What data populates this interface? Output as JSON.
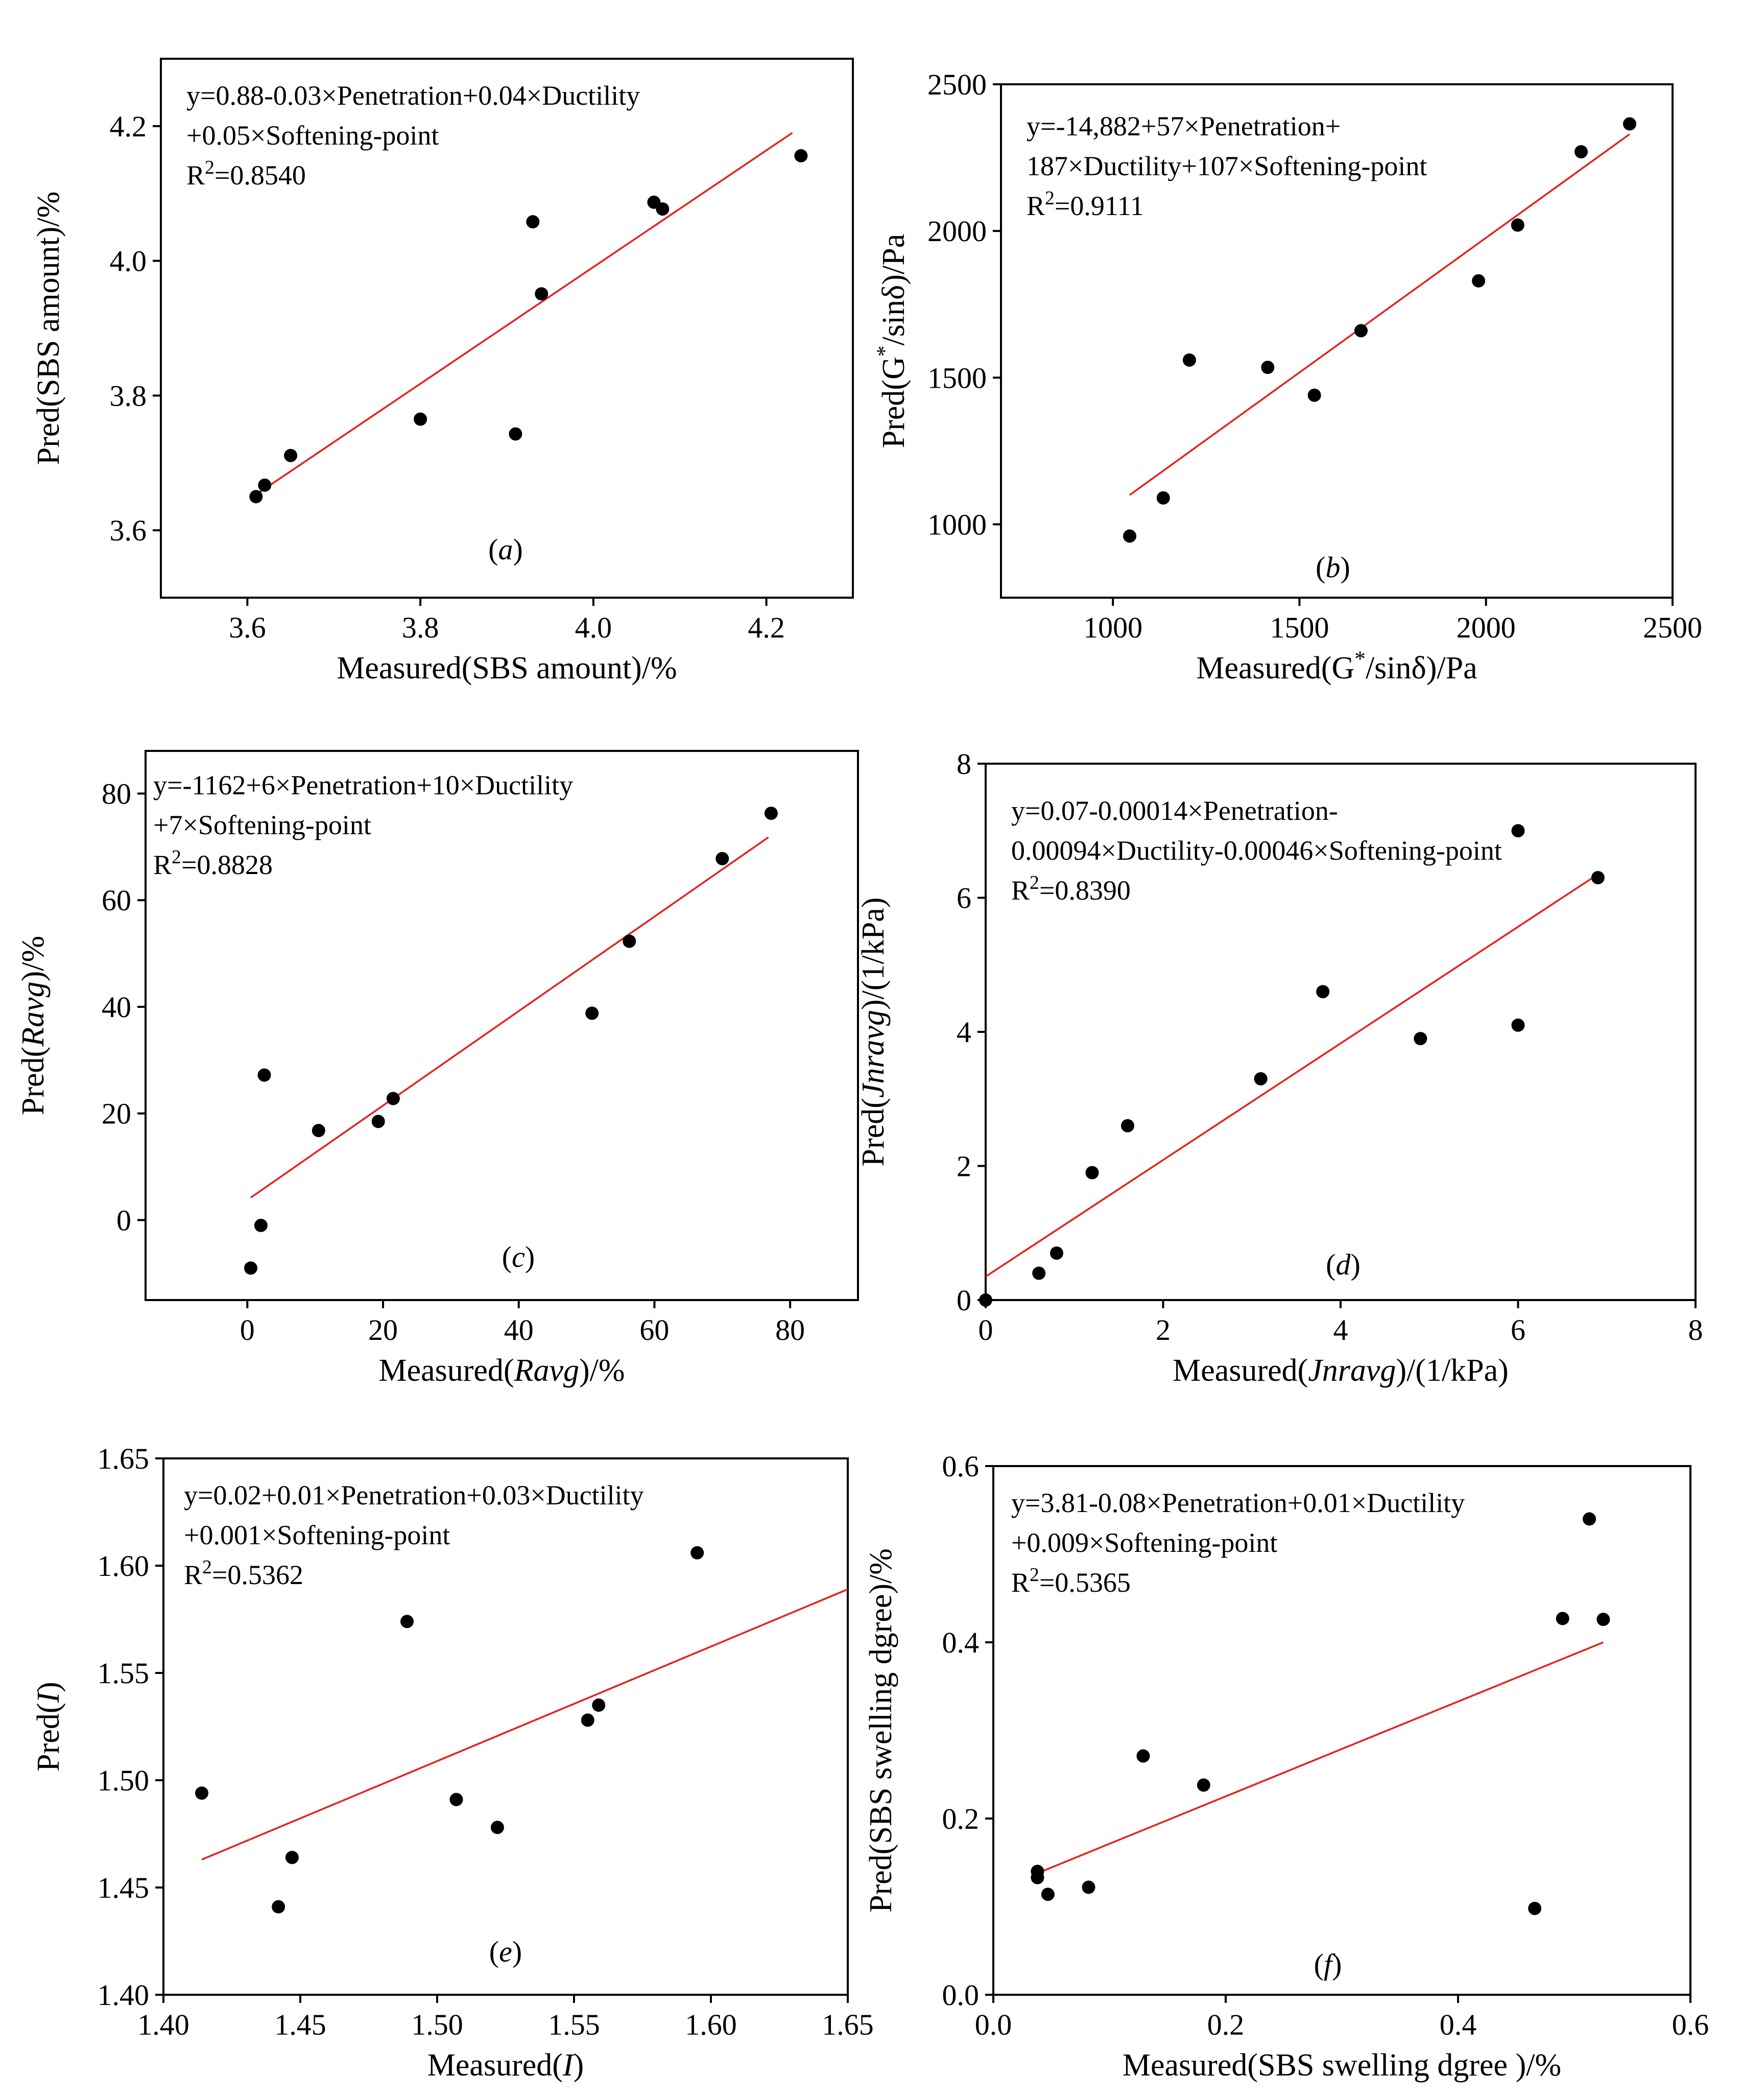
{
  "chart_data": [
    {
      "type": "scatter",
      "panel": "(a)",
      "xlabel": "Measured(SBS amount)/%",
      "ylabel": "Pred(SBS amount)/%",
      "xlim": [
        3.5,
        4.3
      ],
      "ylim": [
        3.5,
        4.3
      ],
      "xticks": [
        3.6,
        3.8,
        4.0,
        4.2
      ],
      "yticks": [
        3.6,
        3.8,
        4.0,
        4.2
      ],
      "tick_decimals": 1,
      "equation_lines": [
        "y=0.88-0.03×Penetration+0.04×Ductility",
        "+0.05×Softening-point"
      ],
      "r2_label": "R²=0.8540",
      "points": [
        [
          3.61,
          3.65
        ],
        [
          3.62,
          3.667
        ],
        [
          3.65,
          3.711
        ],
        [
          3.8,
          3.765
        ],
        [
          3.91,
          3.743
        ],
        [
          3.93,
          4.058
        ],
        [
          3.94,
          3.951
        ],
        [
          4.07,
          4.087
        ],
        [
          4.08,
          4.077
        ],
        [
          4.24,
          4.156
        ]
      ],
      "fit_line": [
        [
          3.61,
          3.653
        ],
        [
          4.23,
          4.19
        ]
      ]
    },
    {
      "type": "scatter",
      "panel": "(b)",
      "xlabel": "Measured(G*/sinδ)/Pa",
      "ylabel": "Pred(G*/sinδ)/Pa",
      "xlim": [
        700,
        2500
      ],
      "ylim": [
        750,
        2500
      ],
      "xticks": [
        1000,
        1500,
        2000,
        2500
      ],
      "yticks": [
        1000,
        1500,
        2000,
        2500
      ],
      "tick_decimals": 0,
      "equation_lines": [
        "y=-14,882+57×Penetration+",
        "187×Ductility+107×Softening-point"
      ],
      "r2_label": "R²=0.9111",
      "points": [
        [
          1045,
          960
        ],
        [
          1135,
          1090
        ],
        [
          1205,
          1560
        ],
        [
          1415,
          1535
        ],
        [
          1540,
          1440
        ],
        [
          1665,
          1660
        ],
        [
          1980,
          1830
        ],
        [
          2085,
          2020
        ],
        [
          2255,
          2270
        ],
        [
          2385,
          2365
        ]
      ],
      "fit_line": [
        [
          1045,
          1100
        ],
        [
          2385,
          2330
        ]
      ]
    },
    {
      "type": "scatter",
      "panel": "(c)",
      "xlabel": "Measured(Ravg)/%",
      "ylabel": "Pred(Ravg)/%",
      "xlim": [
        -15,
        90
      ],
      "ylim": [
        -15,
        88
      ],
      "xticks": [
        0,
        20,
        40,
        60,
        80
      ],
      "yticks": [
        0,
        20,
        40,
        60,
        80
      ],
      "tick_decimals": 0,
      "equation_lines": [
        "y=-1162+6×Penetration+10×Ductility",
        "+7×Softening-point"
      ],
      "r2_label": "R²=0.8828",
      "points": [
        [
          0.5,
          -9
        ],
        [
          2,
          -1
        ],
        [
          2.5,
          27.2
        ],
        [
          10.5,
          16.8
        ],
        [
          19.3,
          18.5
        ],
        [
          21.5,
          22.8
        ],
        [
          50.8,
          38.8
        ],
        [
          56.3,
          52.3
        ],
        [
          70,
          67.8
        ],
        [
          77.2,
          76.3
        ]
      ],
      "fit_line": [
        [
          0.5,
          4.2
        ],
        [
          76.8,
          71.8
        ]
      ]
    },
    {
      "type": "scatter",
      "panel": "(d)",
      "xlabel": "Measured(Jnravg)/(1/kPa)",
      "ylabel": "Pred(Jnravg)/(1/kPa)",
      "xlim": [
        0,
        8
      ],
      "ylim": [
        0,
        8
      ],
      "xticks": [
        0,
        2,
        4,
        6,
        8
      ],
      "yticks": [
        0,
        2,
        4,
        6,
        8
      ],
      "tick_decimals": 0,
      "equation_lines": [
        "y=0.07-0.00014×Penetration-",
        "0.00094×Ductility-0.00046×Softening-point"
      ],
      "r2_label": "R²=0.8390",
      "points": [
        [
          0,
          0
        ],
        [
          0.6,
          0.4
        ],
        [
          0.8,
          0.7
        ],
        [
          1.2,
          1.9
        ],
        [
          1.6,
          2.6
        ],
        [
          3.1,
          3.3
        ],
        [
          3.8,
          4.6
        ],
        [
          4.9,
          3.9
        ],
        [
          6,
          4.1
        ],
        [
          6,
          7
        ],
        [
          6.9,
          6.3
        ]
      ],
      "fit_line": [
        [
          0,
          0.35
        ],
        [
          6.9,
          6.35
        ]
      ]
    },
    {
      "type": "scatter",
      "panel": "(e)",
      "xlabel": "Measured(I)",
      "ylabel": "Pred(I)",
      "xlim": [
        1.4,
        1.65
      ],
      "ylim": [
        1.4,
        1.65
      ],
      "xticks": [
        1.4,
        1.45,
        1.5,
        1.55,
        1.6,
        1.65
      ],
      "yticks": [
        1.4,
        1.45,
        1.5,
        1.55,
        1.6,
        1.65
      ],
      "tick_decimals": 2,
      "equation_lines": [
        "y=0.02+0.01×Penetration+0.03×Ductility",
        "+0.001×Softening-point"
      ],
      "r2_label": "R²=0.5362",
      "points": [
        [
          1.414,
          1.494
        ],
        [
          1.442,
          1.441
        ],
        [
          1.447,
          1.464
        ],
        [
          1.489,
          1.574
        ],
        [
          1.507,
          1.491
        ],
        [
          1.522,
          1.478
        ],
        [
          1.555,
          1.528
        ],
        [
          1.559,
          1.535
        ],
        [
          1.595,
          1.606
        ]
      ],
      "fit_line": [
        [
          1.414,
          1.463
        ],
        [
          1.65,
          1.589
        ]
      ]
    },
    {
      "type": "scatter",
      "panel": "(f)",
      "xlabel": "Measured(SBS swelling dgree )/%",
      "ylabel": "Pred(SBS swelling dgree)/%",
      "xlim": [
        0.0,
        0.6
      ],
      "ylim": [
        0.0,
        0.6
      ],
      "xticks": [
        0.0,
        0.2,
        0.4,
        0.6
      ],
      "yticks": [
        0.0,
        0.2,
        0.4,
        0.6
      ],
      "tick_decimals": 1,
      "equation_lines": [
        "y=3.81-0.08×Penetration+0.01×Ductility",
        "+0.009×Softening-point"
      ],
      "r2_label": "R²=0.5365",
      "points": [
        [
          0.038,
          0.14
        ],
        [
          0.038,
          0.133
        ],
        [
          0.047,
          0.114
        ],
        [
          0.082,
          0.122
        ],
        [
          0.129,
          0.271
        ],
        [
          0.181,
          0.238
        ],
        [
          0.466,
          0.098
        ],
        [
          0.49,
          0.427
        ],
        [
          0.513,
          0.54
        ],
        [
          0.525,
          0.426
        ]
      ],
      "fit_line": [
        [
          0.038,
          0.138
        ],
        [
          0.525,
          0.4
        ]
      ]
    }
  ]
}
